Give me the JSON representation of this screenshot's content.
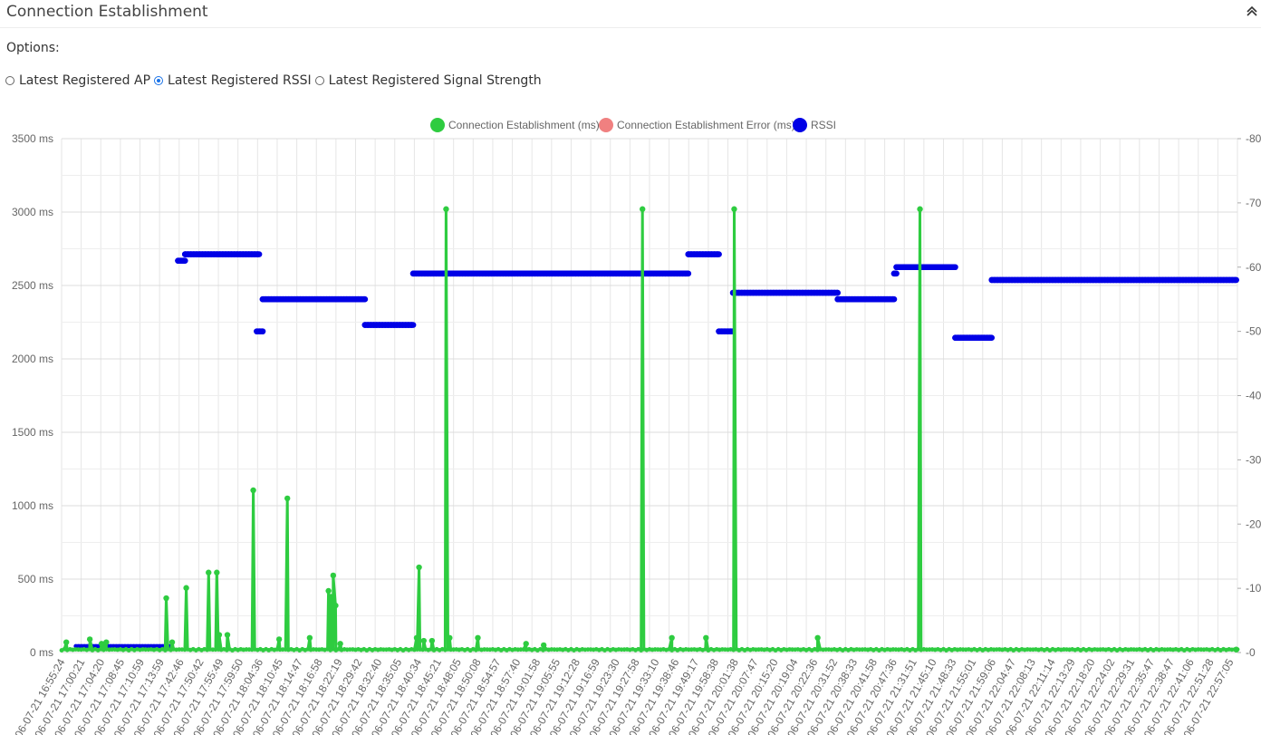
{
  "header": {
    "title": "Connection Establishment",
    "collapse_icon": "chevron-up-icon"
  },
  "options": {
    "label": "Options:",
    "radios": [
      {
        "label": "Latest Registered AP",
        "checked": false
      },
      {
        "label": "Latest Registered RSSI",
        "checked": true
      },
      {
        "label": "Latest Registered Signal Strength",
        "checked": false
      }
    ]
  },
  "chart_data": {
    "type": "line",
    "legend": [
      {
        "name": "Connection Establishment (ms)",
        "color": "#2ecc40"
      },
      {
        "name": "Connection Establishment Error (ms)",
        "color": "#f08080"
      },
      {
        "name": "RSSI",
        "color": "#0000e6"
      }
    ],
    "y_left": {
      "ticks": [
        "3500 ms",
        "3000 ms",
        "2500 ms",
        "2000 ms",
        "1500 ms",
        "1000 ms",
        "500 ms",
        "0 ms"
      ],
      "range": [
        0,
        3500
      ],
      "unit": "ms"
    },
    "y_right": {
      "ticks": [
        "-80",
        "-70",
        "-60",
        "-50",
        "-40",
        "-30",
        "-20",
        "-10",
        "-0"
      ],
      "range": [
        -80,
        0
      ]
    },
    "x_tick_labels": [
      "06-07-21 16:55:24",
      "06-07-21 17:00:21",
      "06-07-21 17:04:20",
      "06-07-21 17:08:45",
      "06-07-21 17:10:59",
      "06-07-21 17:13:59",
      "06-07-21 17:42:46",
      "06-07-21 17:50:42",
      "06-07-21 17:55:49",
      "06-07-21 17:59:50",
      "06-07-21 18:04:36",
      "06-07-21 18:10:45",
      "06-07-21 18:14:47",
      "06-07-21 18:16:58",
      "06-07-21 18:22:19",
      "06-07-21 18:29:42",
      "06-07-21 18:32:40",
      "06-07-21 18:35:05",
      "06-07-21 18:40:34",
      "06-07-21 18:45:21",
      "06-07-21 18:48:05",
      "06-07-21 18:50:08",
      "06-07-21 18:54:57",
      "06-07-21 18:57:40",
      "06-07-21 19:01:58",
      "06-07-21 19:05:55",
      "06-07-21 19:12:28",
      "06-07-21 19:16:59",
      "06-07-21 19:23:30",
      "06-07-21 19:27:58",
      "06-07-21 19:33:10",
      "06-07-21 19:38:46",
      "06-07-21 19:49:17",
      "06-07-21 19:58:38",
      "06-07-21 20:01:38",
      "06-07-21 20:07:47",
      "06-07-21 20:15:20",
      "06-07-21 20:19:04",
      "06-07-21 20:22:36",
      "06-07-21 20:31:52",
      "06-07-21 20:38:33",
      "06-07-21 20:41:58",
      "06-07-21 20:47:36",
      "06-07-21 21:31:51",
      "06-07-21 21:45:10",
      "06-07-21 21:48:33",
      "06-07-21 21:55:01",
      "06-07-21 21:59:06",
      "06-07-21 22:04:47",
      "06-07-21 22:08:13",
      "06-07-21 22:11:14",
      "06-07-21 22:13:29",
      "06-07-21 22:18:20",
      "06-07-21 22:24:02",
      "06-07-21 22:29:31",
      "06-07-21 22:35:47",
      "06-07-21 22:38:47",
      "06-07-21 22:41:06",
      "06-07-21 22:51:28",
      "06-07-21 22:57:05"
    ],
    "ms_spikes": [
      {
        "x": 0.004,
        "y": 70
      },
      {
        "x": 0.024,
        "y": 90
      },
      {
        "x": 0.034,
        "y": 60
      },
      {
        "x": 0.038,
        "y": 70
      },
      {
        "x": 0.089,
        "y": 370
      },
      {
        "x": 0.094,
        "y": 70
      },
      {
        "x": 0.106,
        "y": 440
      },
      {
        "x": 0.125,
        "y": 545
      },
      {
        "x": 0.132,
        "y": 545
      },
      {
        "x": 0.134,
        "y": 120
      },
      {
        "x": 0.141,
        "y": 120
      },
      {
        "x": 0.163,
        "y": 1105
      },
      {
        "x": 0.185,
        "y": 90
      },
      {
        "x": 0.192,
        "y": 1050
      },
      {
        "x": 0.211,
        "y": 100
      },
      {
        "x": 0.227,
        "y": 420
      },
      {
        "x": 0.229,
        "y": 380
      },
      {
        "x": 0.231,
        "y": 525
      },
      {
        "x": 0.233,
        "y": 320
      },
      {
        "x": 0.237,
        "y": 60
      },
      {
        "x": 0.302,
        "y": 100
      },
      {
        "x": 0.304,
        "y": 580
      },
      {
        "x": 0.308,
        "y": 80
      },
      {
        "x": 0.315,
        "y": 80
      },
      {
        "x": 0.327,
        "y": 3020
      },
      {
        "x": 0.33,
        "y": 100
      },
      {
        "x": 0.354,
        "y": 100
      },
      {
        "x": 0.395,
        "y": 60
      },
      {
        "x": 0.41,
        "y": 50
      },
      {
        "x": 0.494,
        "y": 3020
      },
      {
        "x": 0.519,
        "y": 100
      },
      {
        "x": 0.548,
        "y": 100
      },
      {
        "x": 0.572,
        "y": 3020
      },
      {
        "x": 0.643,
        "y": 100
      },
      {
        "x": 0.73,
        "y": 3020
      },
      {
        "x": 0.999,
        "y": 20
      }
    ],
    "rssi_segments": [
      {
        "x0": 0.099,
        "x1": 0.105,
        "y": -61
      },
      {
        "x0": 0.105,
        "x1": 0.168,
        "y": -62
      },
      {
        "x0": 0.166,
        "x1": 0.171,
        "y": -50
      },
      {
        "x0": 0.171,
        "x1": 0.258,
        "y": -55
      },
      {
        "x0": 0.258,
        "x1": 0.299,
        "y": -51
      },
      {
        "x0": 0.299,
        "x1": 0.533,
        "y": -59
      },
      {
        "x0": 0.533,
        "x1": 0.559,
        "y": -62
      },
      {
        "x0": 0.559,
        "x1": 0.571,
        "y": -50
      },
      {
        "x0": 0.571,
        "x1": 0.66,
        "y": -56
      },
      {
        "x0": 0.66,
        "x1": 0.708,
        "y": -55
      },
      {
        "x0": 0.708,
        "x1": 0.71,
        "y": -59
      },
      {
        "x0": 0.71,
        "x1": 0.76,
        "y": -60
      },
      {
        "x0": 0.76,
        "x1": 0.791,
        "y": -49
      },
      {
        "x0": 0.791,
        "x1": 0.999,
        "y": -58
      }
    ],
    "rssi_near_zero": {
      "x0": 0.012,
      "x1": 0.094,
      "y": -1
    }
  }
}
